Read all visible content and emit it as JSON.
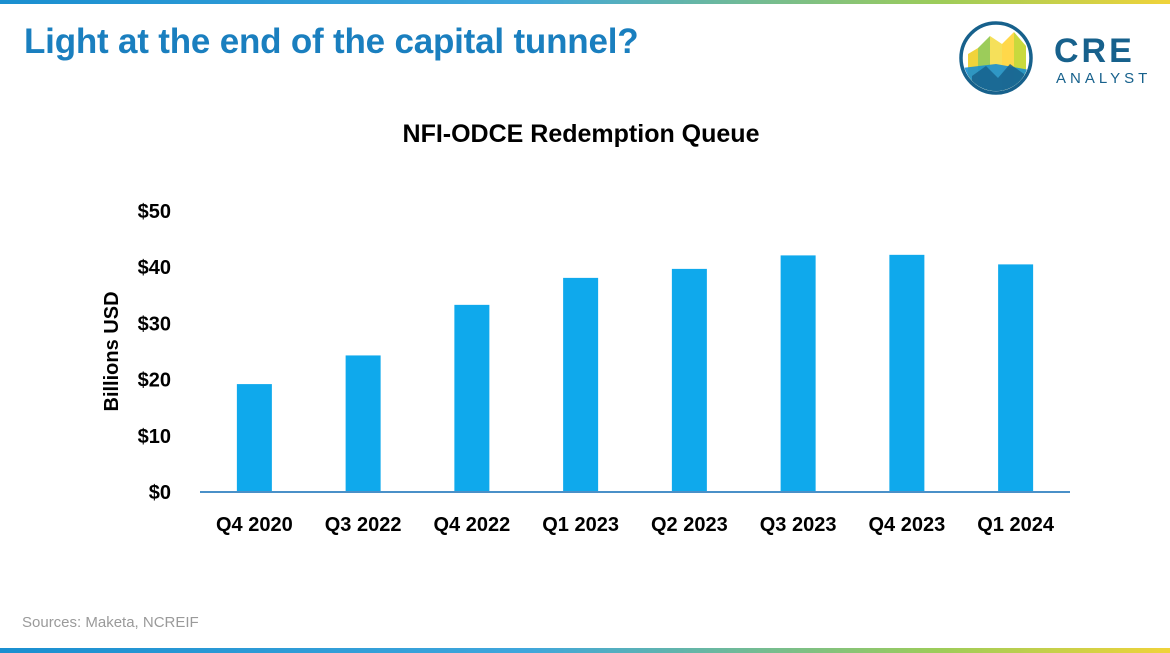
{
  "slide": {
    "title": "Light at the end of the capital tunnel?",
    "source": "Sources: Maketa, NCREIF"
  },
  "logo": {
    "primary": "CRE",
    "secondary": "ANALYST",
    "icon": "city-skyline-logo-icon"
  },
  "colors": {
    "title": "#1a7fbf",
    "bar": "#0fa9ec",
    "axis": "#4a90c8",
    "source": "#9a9a9a"
  },
  "chart_data": {
    "type": "bar",
    "title": "NFI-ODCE Redemption Queue",
    "xlabel": "",
    "ylabel": "Billions USD",
    "categories": [
      "Q4 2020",
      "Q3 2022",
      "Q4 2022",
      "Q1 2023",
      "Q2 2023",
      "Q3 2023",
      "Q4 2023",
      "Q1 2024"
    ],
    "values": [
      19.2,
      24.3,
      33.3,
      38.1,
      39.7,
      42.1,
      42.2,
      40.5
    ],
    "ylim": [
      0,
      50
    ],
    "yticks": [
      0,
      10,
      20,
      30,
      40,
      50
    ],
    "ytick_labels": [
      "$0",
      "$10",
      "$20",
      "$30",
      "$40",
      "$50"
    ],
    "grid": false,
    "legend": "none"
  }
}
